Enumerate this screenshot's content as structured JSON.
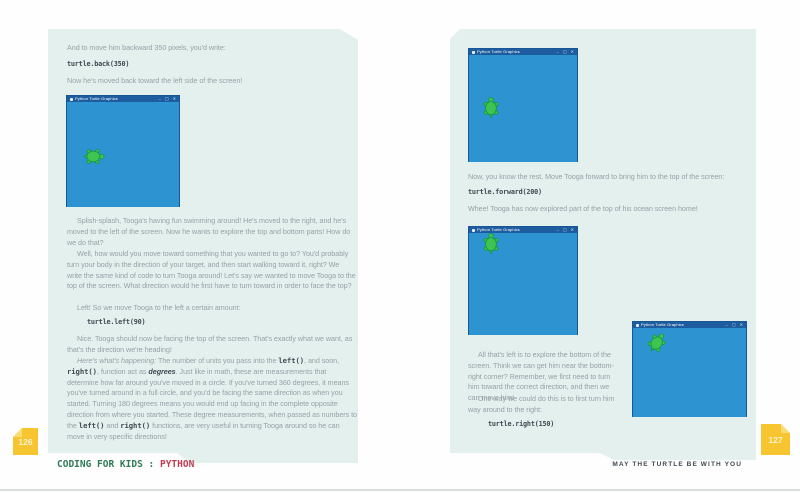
{
  "colors": {
    "panel": "#e4f0ed",
    "canvas-blue": "#2d94d1",
    "titlebar-blue": "#1d5c9e",
    "turtle-green": "#3ec44f",
    "turtle-stroke": "#129740",
    "body-text": "#96a1a8",
    "code-text": "#3e4a52",
    "tab-yellow": "#f6c52f",
    "tab-fold": "#f9dc74",
    "logo-green": "#2e7b55",
    "logo-red": "#c23b52",
    "footer-dark": "#3f4a50"
  },
  "window": {
    "title": "Python Turtle Graphics",
    "controls": {
      "minimize": "–",
      "maximize": "▢",
      "close": "✕"
    }
  },
  "left_page": {
    "page_number": "126",
    "p1": "And to move him backward 350 pixels, you'd write:",
    "code1": "turtle.back(350)",
    "p2": "Now he's moved back toward the left side of the screen!",
    "p3": "Splish-splash, Tooga's having fun swimming around! He's moved to the right, and he's moved to the left of the screen. Now he wants to explore the top and bottom parts! How do we do that?",
    "p4": "Well, how would you move toward something that you wanted to go to? You'd probably turn your body in the direction of your target, and then start walking toward it, right? We write the same kind of code to turn Tooga around! Let's say we wanted to move Tooga to the top of the screen. What direction would he first have to turn toward in order to face the top?",
    "p5": "Left! So we move Tooga to the left a certain amount:",
    "code2": "turtle.left(90)",
    "p6": "Nice. Tooga should now be facing the top of the screen. That's exactly what we want, as that's the direction we're heading!",
    "p7_segments": [
      {
        "t": "Here's what's happening: ",
        "s": "i"
      },
      {
        "t": "The number of units you pass into the ",
        "s": ""
      },
      {
        "t": "left()",
        "s": "c"
      },
      {
        "t": ", and soon, ",
        "s": ""
      },
      {
        "t": "right()",
        "s": "c"
      },
      {
        "t": ", function act as ",
        "s": ""
      },
      {
        "t": "degrees",
        "s": "bi"
      },
      {
        "t": ". Just like in math, these are measurements that determine how far around you've moved in a circle. If you've turned 360 degrees, it means you've turned around in a full circle, and you'd be facing the same direction as when you started. Turning 180 degrees means you would end up facing in the complete opposite direction from where you started. These degree measurements, when passed as numbers to the ",
        "s": ""
      },
      {
        "t": "left()",
        "s": "c"
      },
      {
        "t": " and ",
        "s": ""
      },
      {
        "t": "right()",
        "s": "c"
      },
      {
        "t": " functions, are very useful in turning Tooga around so he can move in very specific directions!",
        "s": ""
      }
    ],
    "footer_series": "CODING FOR KIDS :",
    "footer_accent": "PYTHON"
  },
  "right_page": {
    "page_number": "127",
    "p1": "Now, you know the rest. Move Tooga forward to bring him to the top of the screen:",
    "code1": "turtle.forward(200)",
    "p2": "Whee! Tooga has now explored part of the top of his ocean screen home!",
    "p3": "All that's left is to explore the bottom of the screen. Think we can get him near the bottom-right corner? Remember, we first need to turn him toward the correct direction, and then we can move him!",
    "p4": "One way we could do this is to first turn him way around to the right:",
    "code2": "turtle.right(150)",
    "footer": "MAY THE TURTLE BE WITH YOU"
  }
}
